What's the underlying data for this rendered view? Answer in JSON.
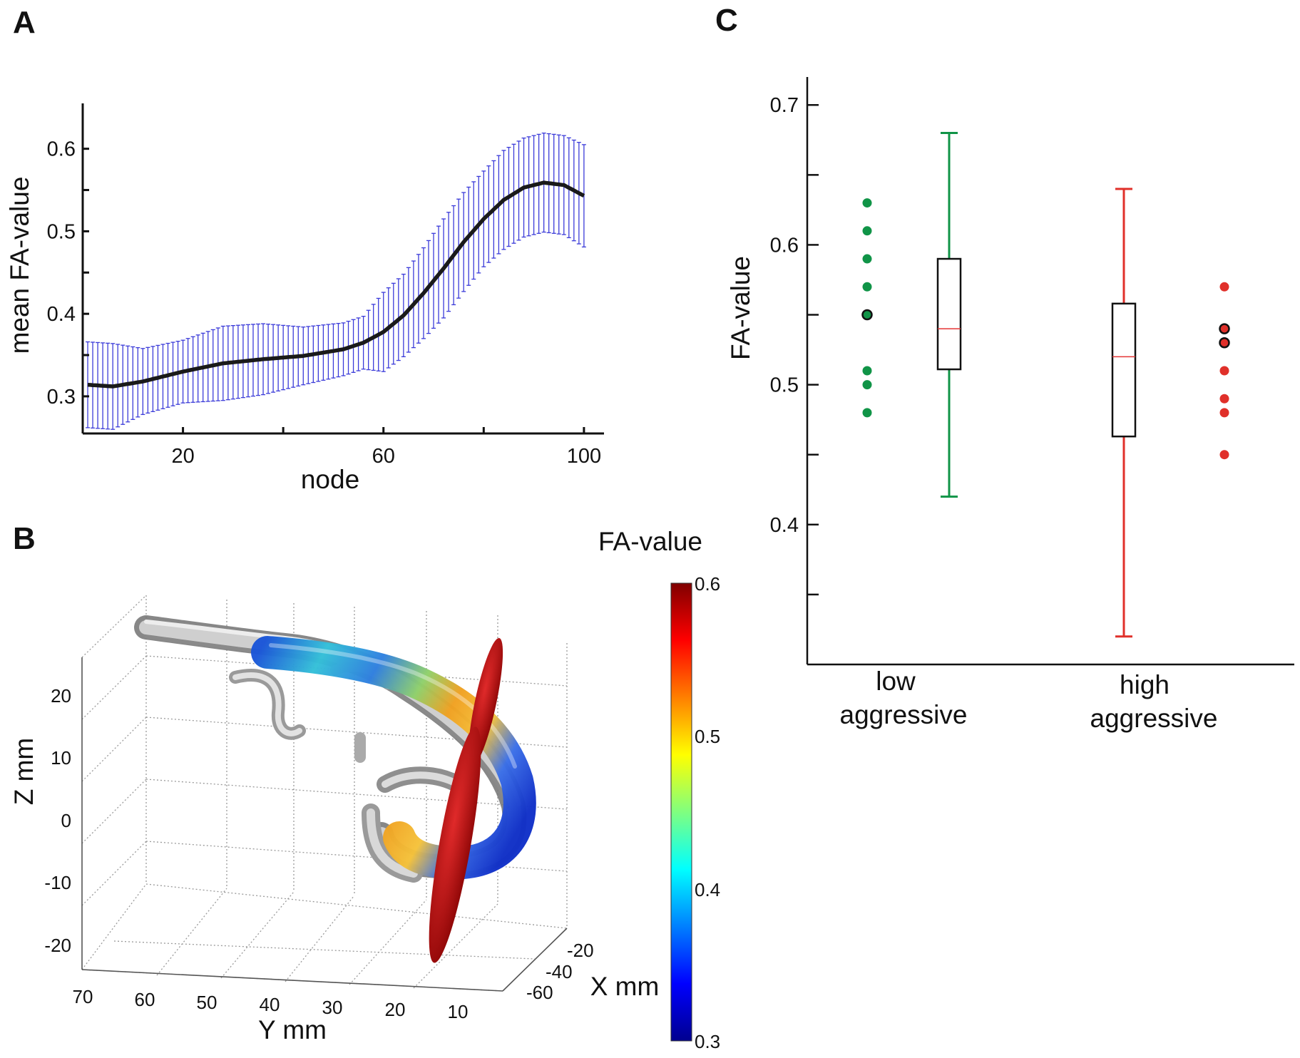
{
  "panel_letters": {
    "a": "A",
    "b": "B",
    "c": "C"
  },
  "colors": {
    "axis": "#111111",
    "errorbar": "#3b3bd9",
    "mean_line": "#1a1a1a",
    "low_group": "#109447",
    "high_group": "#e0302a",
    "median_line": "#e53535",
    "tract_gray": "#a8a8a8",
    "plane_red": "#c21010"
  },
  "chart_data": [
    {
      "type": "line",
      "panel": "A",
      "xlabel": "node",
      "ylabel": "mean FA-value",
      "xlim": [
        0,
        104
      ],
      "ylim": [
        0.255,
        0.655
      ],
      "xticks": [
        20,
        60,
        100
      ],
      "xticklabels": [
        "20",
        "60",
        "100"
      ],
      "yticks": [
        0.3,
        0.4,
        0.5,
        0.6
      ],
      "yticklabels": [
        "0.3",
        "0.4",
        "0.5",
        "0.6"
      ],
      "grid": false,
      "series": [
        {
          "x": [
            1,
            6,
            12,
            20,
            28,
            36,
            44,
            52,
            56,
            60,
            64,
            68,
            72,
            76,
            80,
            84,
            88,
            92,
            96,
            100
          ],
          "mean": [
            0.314,
            0.312,
            0.318,
            0.33,
            0.34,
            0.345,
            0.349,
            0.357,
            0.365,
            0.378,
            0.398,
            0.425,
            0.455,
            0.487,
            0.515,
            0.538,
            0.553,
            0.559,
            0.556,
            0.543
          ],
          "error": [
            0.052,
            0.052,
            0.04,
            0.038,
            0.045,
            0.043,
            0.035,
            0.032,
            0.032,
            0.048,
            0.05,
            0.055,
            0.06,
            0.06,
            0.058,
            0.06,
            0.06,
            0.06,
            0.06,
            0.062
          ]
        }
      ]
    },
    {
      "type": "surface",
      "panel": "B",
      "xlabel": "X mm",
      "ylabel": "Y mm",
      "zlabel": "Z mm",
      "colorbar_title": "FA-value",
      "colorbar_range": [
        0.3,
        0.6
      ],
      "colorbar_ticks": [
        "0.6",
        "0.5",
        "0.4",
        "0.3"
      ],
      "x_ticks": [
        "-20",
        "-40",
        "-60"
      ],
      "y_ticks": [
        "70",
        "60",
        "50",
        "40",
        "30",
        "20",
        "10"
      ],
      "z_ticks": [
        "20",
        "10",
        "0",
        "-10",
        "-20"
      ]
    },
    {
      "type": "box",
      "panel": "C",
      "ylabel": "FA-value",
      "ylim": [
        0.3,
        0.72
      ],
      "yticks": [
        0.4,
        0.5,
        0.6,
        0.7
      ],
      "yticklabels": [
        "0.4",
        "0.5",
        "0.6",
        "0.7"
      ],
      "yminor": [
        0.35,
        0.45,
        0.55,
        0.65
      ],
      "categories": [
        {
          "line1": "low",
          "line2": "aggressive"
        },
        {
          "line1": "high",
          "line2": "aggressive"
        }
      ],
      "groups": [
        {
          "points": [
            0.63,
            0.61,
            0.59,
            0.57,
            0.55,
            0.51,
            0.5,
            0.48
          ],
          "highlighted": [
            0.55
          ],
          "whisker_low": 0.42,
          "q1": 0.511,
          "median": 0.54,
          "q3": 0.59,
          "whisker_high": 0.68
        },
        {
          "points": [
            0.57,
            0.54,
            0.53,
            0.51,
            0.49,
            0.48,
            0.45
          ],
          "highlighted": [
            0.54,
            0.53
          ],
          "whisker_low": 0.32,
          "q1": 0.463,
          "median": 0.52,
          "q3": 0.558,
          "whisker_high": 0.64
        }
      ]
    }
  ]
}
